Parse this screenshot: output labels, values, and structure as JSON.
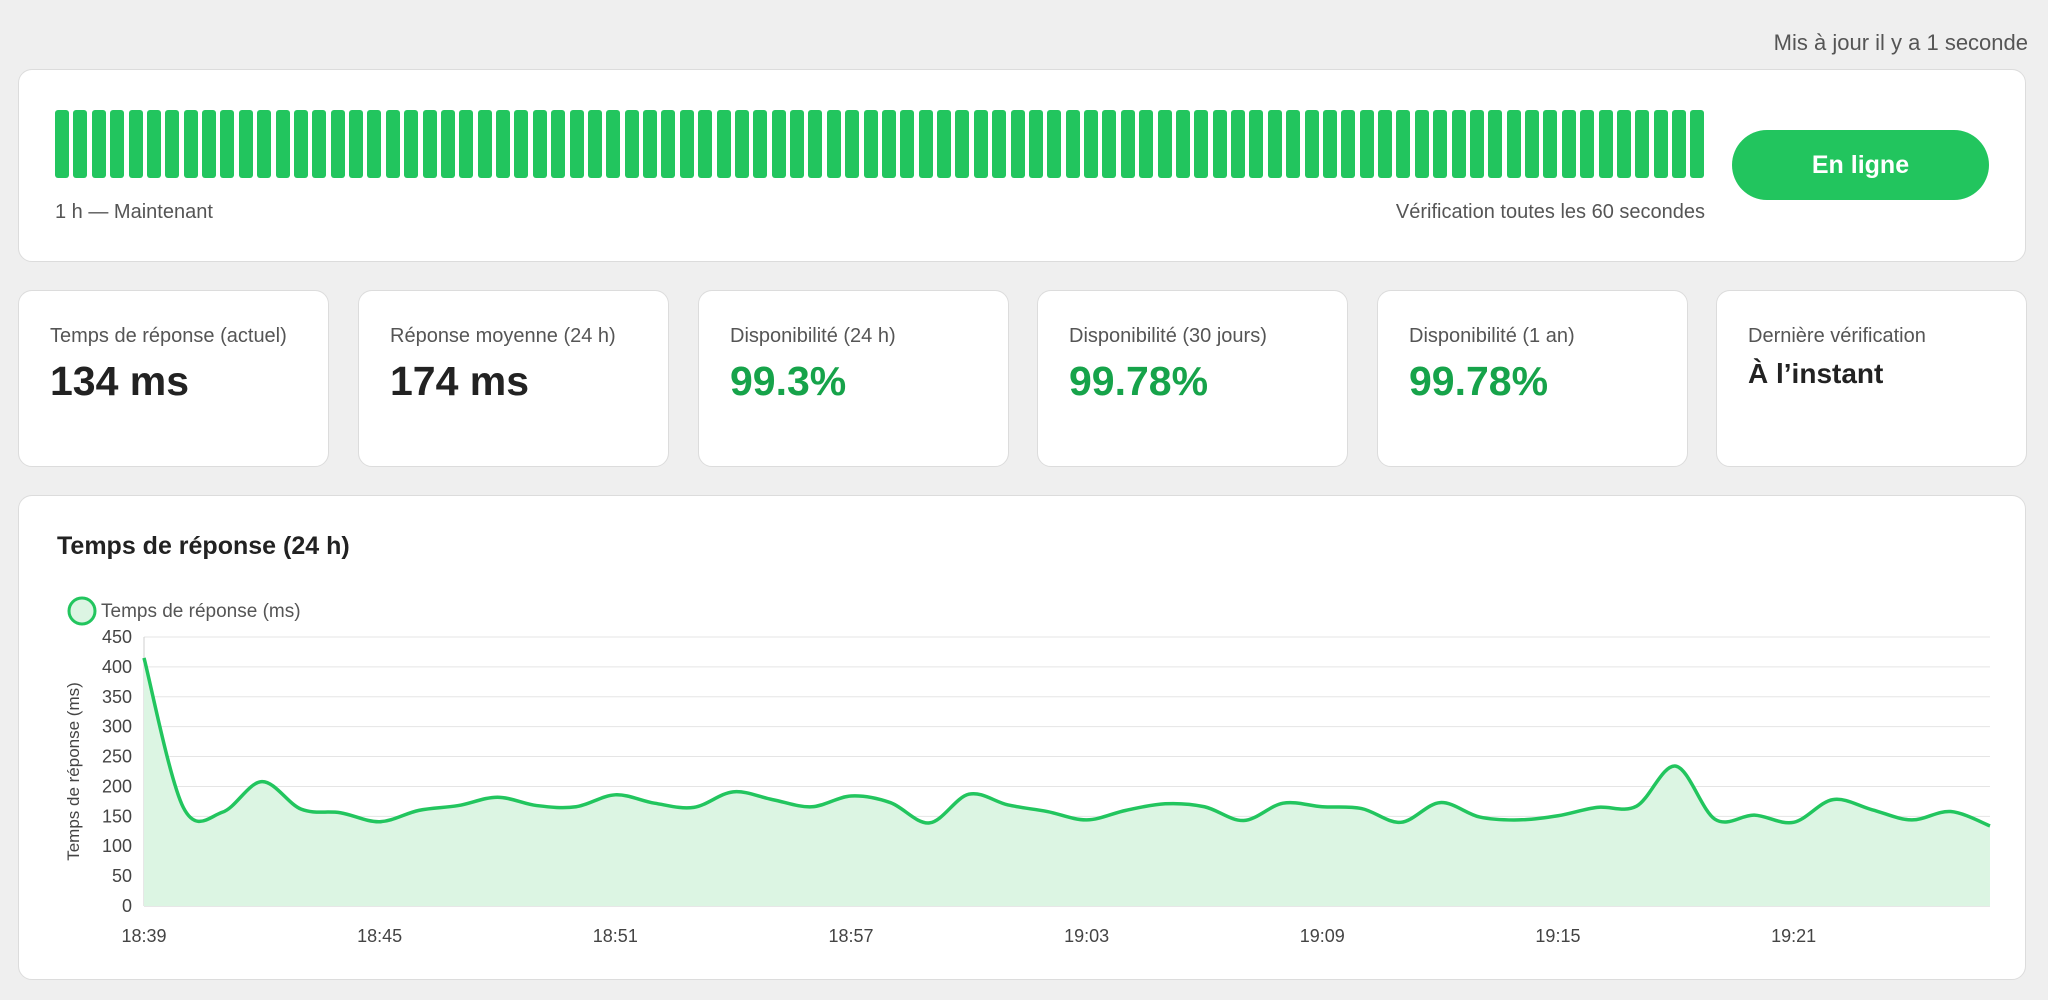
{
  "header": {
    "updated_text": "Mis à jour il y a 1 seconde"
  },
  "status": {
    "bar_count": 90,
    "bar_color": "#22c55e",
    "range_label": "1 h — Maintenant",
    "check_label": "Vérification toutes les 60 secondes",
    "online_label": "En ligne",
    "online_color": "#22c55e"
  },
  "metrics": [
    {
      "label": "Temps de réponse (actuel)",
      "value": "134 ms"
    },
    {
      "label": "Réponse moyenne (24 h)",
      "value": "174 ms"
    },
    {
      "label": "Disponibilité (24 h)",
      "value": "99.3%"
    },
    {
      "label": "Disponibilité (30 jours)",
      "value": "99.78%"
    },
    {
      "label": "Disponibilité (1 an)",
      "value": "99.78%"
    },
    {
      "label": "Dernière vérification",
      "value": "À l’instant"
    }
  ],
  "chart_title": "Temps de réponse (24 h)",
  "chart_data": {
    "type": "area",
    "title": "",
    "ylabel": "Temps de réponse (ms)",
    "xlabel": "",
    "ylim": [
      0,
      450
    ],
    "yticks": [
      0,
      50,
      100,
      150,
      200,
      250,
      300,
      350,
      400,
      450
    ],
    "xtick_labels": [
      "18:39",
      "18:45",
      "18:51",
      "18:57",
      "19:03",
      "19:09",
      "19:15",
      "19:21"
    ],
    "x_start": "18:39",
    "x_end": "19:26",
    "legend_position": "top-left",
    "grid": true,
    "color": "#22c55e",
    "fill": "#dcf5e3",
    "series": [
      {
        "name": "Temps de réponse (ms)",
        "values": [
          415,
          165,
          157,
          208,
          162,
          156,
          141,
          160,
          168,
          182,
          168,
          166,
          186,
          172,
          165,
          191,
          178,
          166,
          184,
          173,
          139,
          187,
          169,
          158,
          144,
          160,
          171,
          166,
          143,
          172,
          166,
          163,
          140,
          173,
          149,
          144,
          151,
          165,
          167,
          234,
          145,
          152,
          140,
          178,
          161,
          144,
          158,
          134
        ]
      }
    ]
  }
}
